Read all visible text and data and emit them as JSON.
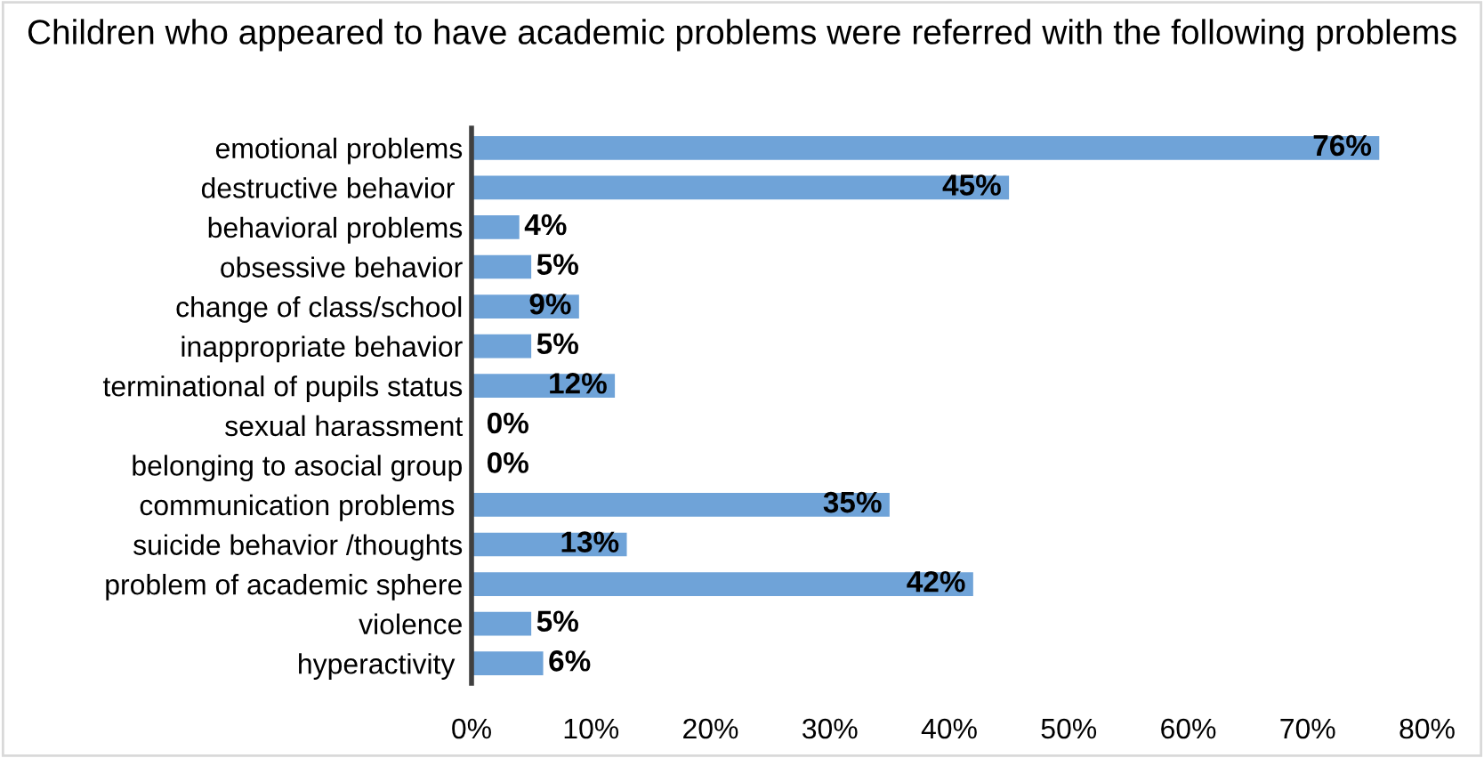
{
  "chart_data": {
    "type": "bar",
    "orientation": "horizontal",
    "title": "Children who appeared to have academic problems were referred with the following problems",
    "categories": [
      "emotional problems",
      "destructive behavior ",
      "behavioral problems",
      "obsessive behavior",
      "change of class/school",
      "inappropriate behavior",
      "terminational of pupils status",
      "sexual harassment",
      "belonging to asocial group",
      "communication problems ",
      "suicide behavior /thoughts",
      "problem of academic sphere",
      "violence",
      "hyperactivity "
    ],
    "values": [
      76,
      45,
      4,
      5,
      9,
      5,
      12,
      0,
      0,
      35,
      13,
      42,
      5,
      6
    ],
    "value_labels": [
      "76%",
      "45%",
      "4%",
      "5%",
      "9%",
      "5%",
      "12%",
      "0%",
      "0%",
      "35%",
      "13%",
      "42%",
      "5%",
      "6%"
    ],
    "color": "#6fa3d8",
    "xlim": [
      0,
      80
    ],
    "xticks": [
      {
        "value": 0,
        "label": "0%"
      },
      {
        "value": 10,
        "label": "10%"
      },
      {
        "value": 20,
        "label": "20%"
      },
      {
        "value": 30,
        "label": "30%"
      },
      {
        "value": 40,
        "label": "40%"
      },
      {
        "value": 50,
        "label": "50%"
      },
      {
        "value": 60,
        "label": "60%"
      },
      {
        "value": 70,
        "label": "70%"
      },
      {
        "value": 80,
        "label": "80%"
      }
    ],
    "grid": false,
    "legend": false
  }
}
